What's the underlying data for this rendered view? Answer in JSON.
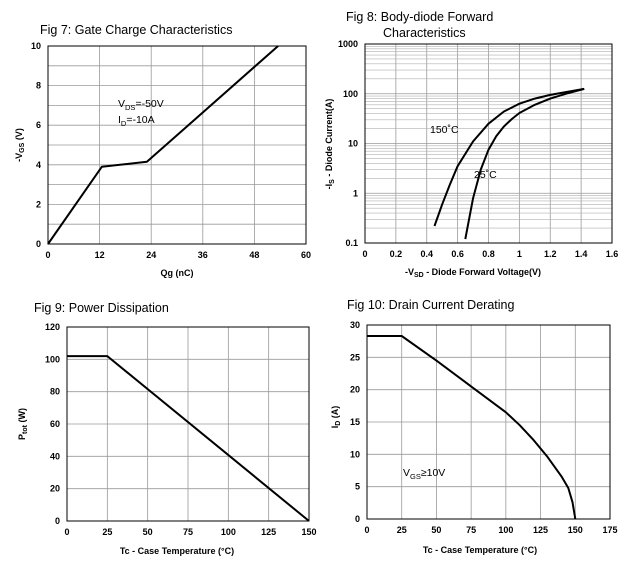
{
  "chart_data": [
    {
      "id": "fig7",
      "type": "line",
      "title": "Fig 7: Gate Charge Characteristics",
      "xlabel": "Qg (nC)",
      "ylabel": "-V_GS (V)",
      "ylabel_main": "-V",
      "ylabel_sub": "GS",
      "ylabel_tail": " (V)",
      "xlim": [
        0,
        60
      ],
      "ylim": [
        0,
        10
      ],
      "xticks": [
        0,
        12,
        24,
        36,
        48,
        60
      ],
      "yticks": [
        0,
        2,
        4,
        6,
        8,
        10
      ],
      "xgrid": [
        0,
        12,
        24,
        36,
        48,
        60
      ],
      "ygrid": [
        0,
        1,
        2,
        3,
        4,
        5,
        6,
        7,
        8,
        9,
        10
      ],
      "series": [
        {
          "name": "gate charge",
          "x": [
            0,
            12.5,
            23,
            53.5
          ],
          "y": [
            0,
            3.9,
            4.15,
            10
          ]
        }
      ],
      "annotations": [
        {
          "id": "vds",
          "main": "V",
          "sub": "DS",
          "tail": "=-50V",
          "at": [
            17,
            7
          ]
        },
        {
          "id": "id",
          "main": "I",
          "sub": "D",
          "tail": "=-10A",
          "at": [
            17,
            6.2
          ]
        }
      ]
    },
    {
      "id": "fig8",
      "type": "line",
      "title": "Fig 8: Body-diode Forward",
      "title_line2": "Characteristics",
      "xlabel": "-V_SD - Diode Forward Voltage(V)",
      "xlabel_main": "-V",
      "xlabel_sub": "SD",
      "xlabel_tail": " - Diode Forward Voltage(V)",
      "ylabel": "-I_S - Diode Current(A)",
      "ylabel_main": "-I",
      "ylabel_sub": "S",
      "ylabel_tail": " - Diode Current(A)",
      "yscale": "log",
      "xlim": [
        0,
        1.6
      ],
      "ylim": [
        0.1,
        1000
      ],
      "xticks": [
        0,
        0.2,
        0.4,
        0.6,
        0.8,
        1,
        1.2,
        1.4,
        1.6
      ],
      "xtick_labels": [
        "0",
        "0.2",
        "0.4",
        "0.6",
        "0.8",
        "1",
        "1.2",
        "1.4",
        "1.6"
      ],
      "yticks": [
        0.1,
        1,
        10,
        100,
        1000
      ],
      "ytick_labels": [
        "0.1",
        "1",
        "10",
        "100",
        "1000"
      ],
      "xgrid": [
        0,
        0.2,
        0.4,
        0.6,
        0.8,
        1,
        1.2,
        1.4,
        1.6
      ],
      "series": [
        {
          "name": "150°C",
          "x": [
            0.45,
            0.5,
            0.55,
            0.6,
            0.7,
            0.8,
            0.9,
            1.0,
            1.1,
            1.2,
            1.3,
            1.42
          ],
          "y": [
            0.22,
            0.6,
            1.5,
            3.5,
            11,
            25,
            44,
            63,
            80,
            95,
            108,
            125
          ]
        },
        {
          "name": "25°C",
          "x": [
            0.65,
            0.7,
            0.75,
            0.8,
            0.85,
            0.9,
            0.95,
            1.0,
            1.1,
            1.2,
            1.3,
            1.42
          ],
          "y": [
            0.12,
            0.8,
            3,
            7.5,
            14,
            22,
            31,
            41,
            60,
            80,
            100,
            125
          ]
        }
      ],
      "annotations": [
        {
          "id": "t150",
          "text": "150˚C",
          "at": [
            0.42,
            19
          ]
        },
        {
          "id": "t25",
          "text": "25˚C",
          "at": [
            0.72,
            2.5
          ]
        }
      ]
    },
    {
      "id": "fig9",
      "type": "line",
      "title": "Fig 9: Power Dissipation",
      "xlabel": "Tc - Case Temperature (°C)",
      "ylabel": "P_tot (W)",
      "ylabel_main": "P",
      "ylabel_sub": "tot",
      "ylabel_tail": " (W)",
      "xlim": [
        0,
        150
      ],
      "ylim": [
        0,
        120
      ],
      "xticks": [
        0,
        25,
        50,
        75,
        100,
        125,
        150
      ],
      "yticks": [
        0,
        20,
        40,
        60,
        80,
        100,
        120
      ],
      "xgrid": [
        0,
        25,
        50,
        75,
        100,
        125,
        150
      ],
      "ygrid": [
        0,
        20,
        40,
        60,
        80,
        100,
        120
      ],
      "series": [
        {
          "name": "Ptot",
          "x": [
            0,
            25,
            150
          ],
          "y": [
            102,
            102,
            0
          ]
        }
      ],
      "annotations": []
    },
    {
      "id": "fig10",
      "type": "line",
      "title": "Fig 10: Drain Current Derating",
      "xlabel": "Tc - Case Temperature (°C)",
      "ylabel": "I_D (A)",
      "ylabel_main": "I",
      "ylabel_sub": "D",
      "ylabel_tail": " (A)",
      "xlim": [
        0,
        175
      ],
      "ylim": [
        0,
        30
      ],
      "xticks": [
        0,
        25,
        50,
        75,
        100,
        125,
        150,
        175
      ],
      "xtick_labels": [
        "0",
        "25",
        "50",
        "75",
        "100",
        "125",
        "150",
        "175"
      ],
      "yticks": [
        0,
        5,
        10,
        15,
        20,
        25,
        30
      ],
      "xgrid": [
        0,
        25,
        50,
        75,
        100,
        125,
        150,
        175
      ],
      "ygrid": [
        0,
        5,
        10,
        15,
        20,
        25,
        30
      ],
      "series": [
        {
          "name": "ID",
          "x": [
            0,
            25,
            50,
            75,
            100,
            110,
            120,
            130,
            140,
            145,
            148,
            150
          ],
          "y": [
            28.3,
            28.3,
            24.5,
            20.5,
            16.5,
            14.5,
            12.2,
            9.6,
            6.6,
            4.8,
            2.6,
            0
          ]
        }
      ],
      "annotations": [
        {
          "id": "vgs",
          "main": "V",
          "sub": "GS",
          "tail": "≥10V",
          "at": [
            25,
            7
          ]
        }
      ]
    }
  ]
}
